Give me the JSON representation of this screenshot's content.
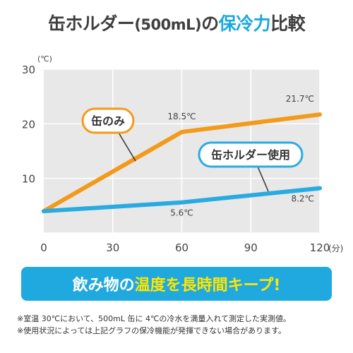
{
  "title": {
    "part1": "缶ホルダー",
    "part2": "(500mL)",
    "part3": "の",
    "part4": "保冷力",
    "part5": "比較"
  },
  "banner": {
    "part1": "飲み物の",
    "part2": "温度を長時間キープ!",
    "bg_color": "#1fa9df",
    "highlight_color": "#ffe600"
  },
  "notes": [
    "※室温 30℃において、500mL 缶に 4℃の冷水を満量入れて測定した実測値。",
    "※使用状況によっては上記グラフの保冷機能が発揮できない場合があります。"
  ],
  "chart_data": {
    "type": "line",
    "x": [
      0,
      60,
      120
    ],
    "xticks": [
      0,
      30,
      60,
      90,
      120
    ],
    "xunit": "(分)",
    "yticks": [
      10,
      20,
      30
    ],
    "yunit": "(℃)",
    "xlim": [
      0,
      120
    ],
    "ylim": [
      0,
      30
    ],
    "grid": true,
    "series": [
      {
        "name": "缶のみ",
        "values": [
          4,
          18.5,
          21.7
        ],
        "color": "#f39a1a",
        "point_labels": [
          "",
          "18.5℃",
          "21.7℃"
        ]
      },
      {
        "name": "缶ホルダー使用",
        "values": [
          4,
          5.6,
          8.2
        ],
        "color": "#29abe2",
        "point_labels": [
          "",
          "5.6℃",
          "8.2℃"
        ]
      }
    ]
  }
}
